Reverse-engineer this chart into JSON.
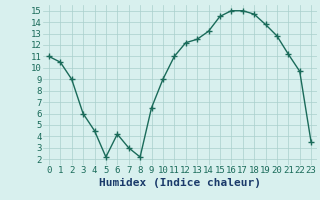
{
  "x": [
    0,
    1,
    2,
    3,
    4,
    5,
    6,
    7,
    8,
    9,
    10,
    11,
    12,
    13,
    14,
    15,
    16,
    17,
    18,
    19,
    20,
    21,
    22,
    23
  ],
  "y": [
    11,
    10.5,
    9,
    6,
    4.5,
    2.2,
    4.2,
    3.0,
    2.2,
    6.5,
    9.0,
    11.0,
    12.2,
    12.5,
    13.2,
    14.5,
    15.0,
    15.0,
    14.7,
    13.8,
    12.8,
    11.2,
    9.7,
    3.5
  ],
  "line_color": "#1a6b5a",
  "marker": "+",
  "marker_size": 4,
  "bg_color": "#d8f0ee",
  "grid_color": "#aacfcc",
  "xlabel": "Humidex (Indice chaleur)",
  "xlabel_fontsize": 8,
  "xlim": [
    -0.5,
    23.5
  ],
  "ylim": [
    1.5,
    15.5
  ],
  "yticks": [
    2,
    3,
    4,
    5,
    6,
    7,
    8,
    9,
    10,
    11,
    12,
    13,
    14,
    15
  ],
  "xticks": [
    0,
    1,
    2,
    3,
    4,
    5,
    6,
    7,
    8,
    9,
    10,
    11,
    12,
    13,
    14,
    15,
    16,
    17,
    18,
    19,
    20,
    21,
    22,
    23
  ],
  "tick_label_fontsize": 6.5,
  "line_width": 1.0,
  "tick_color": "#1a6b5a",
  "label_color": "#1a3a6a"
}
